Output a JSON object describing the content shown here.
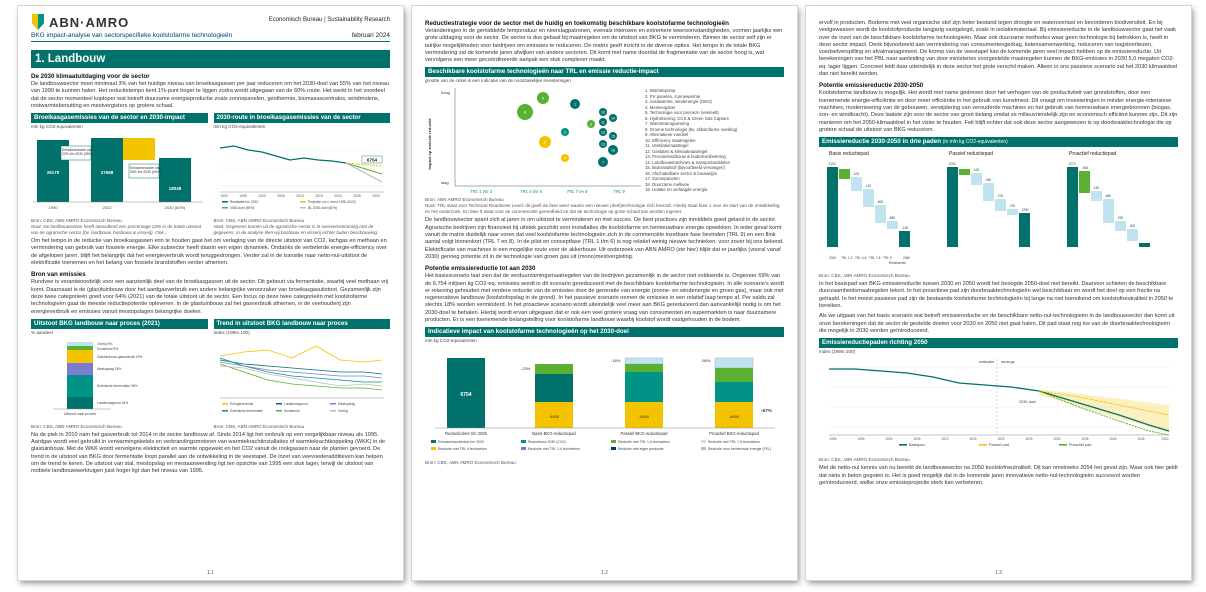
{
  "p1": {
    "brand": "ABN·AMRO",
    "header_right_1": "Economisch Bureau | Sustainability Research",
    "subtitle": "BKG impact-analyse van sectorspecifieke koolstofarme technologieën",
    "date": "februari 2024",
    "chapter": "1. Landbouw",
    "h1": "De 2030 klimaatuitdaging voor de sector",
    "para1": "De landbouwsector moet minimaal 3% van het huidige niveau van broeikasgassen per jaar reduceren om het 2030-doel van 55% van het niveau van 1990 te kunnen halen. Het reductietempo kent 1%-punt hoger te liggen zodra wordt uitgegaan van de 60%-route. Het werkt in het voordeel dat de sector momenteel koploper wat betreft duurzame energieproductie zoals zonnepanelen, geothermie, biomassacentrales, windmolens, restwarmtebenutting en mestvergisters op grotere schaal.",
    "chart1_title": "Broeikasgasemissies van de sector en 2030-impact",
    "chart1_unit": "mln kg CO2-equivalenten",
    "chart1_values": [
      "26170",
      "27688",
      "18048"
    ],
    "chart1_xlabels": [
      "1990",
      "2022",
      "2030 (60%)"
    ],
    "chart1_note1": "Emissiereductie van 22% t/m 2030 in het geval (de 55%-route)",
    "chart1_note2": "Emissiereductie van 30% t/m 2030 (in het geval van 60%-route)",
    "chart2_title": "2030-route in broeikasgasemissies van de sector",
    "chart2_unit": "mln kg CO2-equivalenten",
    "chart2_value": "6754",
    "chart2_years": [
      "1990",
      "1995",
      "2000",
      "2005",
      "2010",
      "2015",
      "2020",
      "2025",
      "2030"
    ],
    "chart2_legend": [
      "Realisatie t/m 2022",
      "2030-doel (55%)",
      "Projectie o.b.v. trend 1990-2022)",
      "BL 2030-doel (60%)"
    ],
    "source1": "Bron: CBS, ABN AMRO Economisch Bureau",
    "note1": "Noot: De landbouwsector heeft aanvullend een percentage 22% in de totale uitstoot van de agrarische sector (bv. landbouw, bosbouw & visserij). Ook...",
    "source1b": "Bron: CBS, ABN AMRO Economisch Bureau",
    "note1b": "Noot: Gegevens komen uit de agrarische sector is in overeenstemming met de gegevens. In de analyse liten wij bosbouw en visserij echter buiten beschouwing.",
    "para2": "Om het tempo in de reductie van broeikasgassen erin te houden gaat het om verlaging van de directe uitstoot van CO2, lachgas en methaan en vermindering van gebruik van fossiele energie. Elke subsector heeft daarin een eigen dynamiek. Ondanks de verbeterde energie-efficiency over de afgelopen jaren, blijft het belangrijk dat het energieverbruik wordt teruggedrongen. Verder zal in de transitie naar netto-nul-uitstoot de elektrificatie toenemen en het belang van fossiele brandstoffen verder afnemen.",
    "h2": "Bron van emissies",
    "para3": "Rundvee is verantwoordelijk voor een aanzienlijk deel van de broeikasgassen uit de sector. Dit gebeurt via fermentatie, waarbij veel methaan vrij komt. Daarnaast is de (glas)tuinbouw door het aardgasverbruik een andere belangrijke veroorzaker van broeikasgasuitstoot. Gezamenlijk zijn deze twee categorieën goed voor 64% (2021) van de totale uitstoot uit de sector. Een focus op deze twee categorieën met koolstofarme technologieën gaat de meeste reductiepotentie opleveren. In de glastuinbouw zal het gasverbruik afnemen, in de veehouderij zijn energieverbruik en emissies vanuit mestopslagen belangrijke doelen.",
    "chart3_title": "Uitstoot BKG landbouw naar proces (2021)",
    "chart3_unit": "% aandeel",
    "chart3_labels": [
      "Overig 5%",
      "Kunstmest 5%",
      "Glastuinbouw gasverbruik 19%",
      "Mestopslag 18%",
      "Enterische fermentatie 35%",
      "Landbouwgrond 18%"
    ],
    "chart3_xlabel": "Uitstoot naar proces",
    "chart4_title": "Trend in uitstoot BKG landbouw naar proces",
    "chart4_unit": "Index (1990=100)",
    "chart4_legend": [
      "Energieverbruik",
      "Landbouwgrond",
      "Mestopslag",
      "Enterische fermentatie",
      "Kunstmest",
      "Overig"
    ],
    "source2": "Bron: CBS, ABN AMRO Economisch Bureau",
    "source2b": "Bron: CBS, ABN AMRO Economisch Bureau",
    "para4": "Na de piek in 2010 nam het gasverbruik tot 2014 in de sector landbouw af. Sinds 2014 ligt het verbruik op een vergelijkbaar niveau als 1995. Aardgas wordt veel gebruikt in verwarmingsketels en verbrandingsmotoren van warmtekrachtinstallaties of warmtekrachtkoppeling (WKK) in de glastuinbouw. Met de WKK wordt vervolgens elektriciteit en warmte opgewekt en het CO2 vanuit de rookgassen naar de planten gevoerd. De trend in de uitstoot van BKG door fermentatie loopt parallel aan de ontwikkeling in de veestapel. De inzet van veevoederadditieven kan helpen om de trend te keren. De uitstoot van stal, mestopslag en mestaanwending ligt ten opzichte van 1995 een stuk lager, terwijl de uitstoot van mobiele landbouwwerktuigen juist hoger ligt dan het niveau van 1995.",
    "page": "1.1"
  },
  "p2": {
    "h1": "Reductiestrategie voor de sector met de huidig en toekomstig beschikbare koolstofarme technologieën",
    "para1": "Veranderingen in de gemiddelde temperatuur en neerslagpatronen, evenals intensere en extremere weersomstandigheden, vormen jaarlijks een grote uitdaging voor de sector. De sector is dus gebaat bij maatregelen om de uitstoot van BKG te verminderen. Binnen de sector zelf zijn er talrijke mogelijkheden voor bedrijven om emissies te reduceren. De matrix geeft inzicht in de diverse opties. Het tempo in de totale BKG vermindering zal de komende jaren afwijken van andere sectoren. Dit komt met name doordat de fragmentatie van de sector hoog is, wat vervolgens een meer gecoördineerde aanpak een stuk complexer maakt.",
    "matrix_title": "Beschikbare koolstofarme technologieën naar TRL en emissie reductie-impact",
    "matrix_unit": "grootte van de cirkel is een indicatie van de noodzakelijke investeringen",
    "matrix_ylabel": "Impact op emissie reductie",
    "matrix_yhigh": "hoog",
    "matrix_ylow": "laag",
    "matrix_xlabels": [
      "TRL 1 t/m 3",
      "TRL 4 t/m 6",
      "TRL 7 en 8",
      "TRL 9"
    ],
    "matrix_nums": [
      "1",
      "2",
      "3",
      "4",
      "5",
      "6",
      "7",
      "8",
      "9",
      "10",
      "11",
      "12",
      "13",
      "14",
      "15",
      "16",
      "17",
      "18",
      "19"
    ],
    "matrix_items": [
      "1. Warmtepomp",
      "2. PV-panelen, zonnewarmte",
      "3. Aardwarmte, windenergie (GEO)",
      "4. Mestvergister",
      "5. Technologie voor precieze (veeteelt)",
      "6. Hydrolisering, CCS & Green Gas Capture",
      "7. Warmteterugwinning",
      "8. Groene technologie (bv. stikstofarme voeding)",
      "9. Alternatieve voedsel",
      "10. Efficiency maatregelen",
      "11. Ventilatiemaatregel",
      "12. Geslaten & klimaatmaatregel",
      "13. Precisielandbouw & bodemverbetering",
      "14. Landbouwmachines & transportmiddelen",
      "15. Biobrandstof (bijvoorbeeld vervangen)",
      "16. Afschakelbare sector & bouwwijze",
      "17. Zonnepanelen",
      "18. Duurzame melkvee",
      "19. Isolatie en verlaagde energie"
    ],
    "source1": "Bron: ABN AMRO Economisch Bureau",
    "note1": "Noot: TRL staat voor Technical Readiness Level: dit geeft de fase weer waarin een nieuwe (deel)technologie zich bevindt. Hierbij staat fase 1 voor de start van de ontwikkeling en het onderzoek. En fase 9 staat voor de commerciële gereedheid en dat de technologie op grote schaal kan worden ingezet.",
    "para2": "De landbouwsector spant zich al jaren in om uitstoot te verminderen en met succes. De best practices zijn inmiddels goed geland in de sector. Agrarische bedrijven zijn financieel bij uitstek geschikt voor installaties die koolstofarme en hernieuwbare energie opwekken. In ieder geval komt vanuit de matrix duidelijk naar voren dat veel koolstofarme technologieën zich in de commerciële inzetbare fase bevinden (TRL 9) en een flink aantal volgt binnenkort (TRL 7 en 8). In de pilot en conceptfase (TRL 1 t/m 6) is nog relatief weinig nieuwe technieken, voor zover bij ons bekend. Elektrificatie van machines is een mogelijke route voor de akkerbouw. Uit onderzoek van ABN AMRO (zie hier) blijkt dat er jaarlijks (vooral vanaf 2030) genoeg potentie zit in de technologie van groen gas uit (mono)mestvergisting.",
    "h2": "Potentie emissiereductie tot aan 2030",
    "para3": "Het basisscenario laat zien dat de verduurzamingsmaatregelen van de bedrijven gezamenlijk in de sector niet voldoende is. Ongeveer 69% van de 6.754 miljoen kg CO2-eq. emissies wordt in dit scenario gereduceerd met de beschikbare koolstofarme technologieën. In alle scenario's wordt er rekening gehouden met verdere reductie van de emissies door de generatie van energie (zonne- en windenergie en groen gas), maar ook met regeneratieve landbouw (koolstofopslag in de grond). In het passieve scenario nemen de emissies in een relatief laag tempo af. Per saldo zal slechts 18% worden verminderd. In het proactieve scenario wordt uiteindelijk veel meer aan BKG gereduceerd dan aanvankelijk nodig is om het 2030-doel te behalen. Hierbij wordt ervan uitgegaan dat er ook een veel grotere vraag van consumenten en supermarkten is naar duurzamere producten. Er is een toenemende belangstelling voor koolstofarme landbouw waarbij koolstof wordt vastgehouden in de bodem.",
    "chart_title": "Indicatieve impact van koolstofarme technologieën op het 2030-doel",
    "chart_unit": "mln kg CO2-equivalenten",
    "chart_value_main": "6754",
    "chart_pcts": [
      "-23%",
      "-18%",
      "-58%",
      "-67%"
    ],
    "chart_inner": [
      "-4900",
      "-4900",
      "-4900"
    ],
    "chart_end": "-67%",
    "chart_xlabels": [
      "Reductiedoel t/m 2030",
      "Basis BKG-reductiepad",
      "Passief BKG-reductiepad",
      "Proactief BKG-reductiepad"
    ],
    "chart_legend": [
      "Emissiereductiedoel t/m 2030",
      "Restuitstoot 2030 (CO2)",
      "Reductie met TRL 1-6 technieken",
      "Reductie met TRL 7-8 technieken",
      "Reductie met TRL 9 technieken",
      "Reductie met TRL 1-6 technieken",
      "Reductie met eigen productie",
      "Reductie door hernieuwde energie (FEL)"
    ],
    "source2": "Bron: CBS, ABN AMRO Economisch Bureau",
    "page": "1.2"
  },
  "p3": {
    "para1": "ervolf in producten. Bodems met veel organische stof zijn beter bestand tegen droogte en wateroverlast en bevorderen biodiversiteit. En bij veelgewassen wordt de koolstofproductie langjarig vastgelegd, zoals in isolatiemateriaal. Bij emissiereductie in de landbouwsector gaat het vaak over de inzet van de beschikbare koolstofarme technologieën. Maar ook duurzame methodes waar geen technologie bij betrokken is, heeft in deze sector impact. Denk bijvoorbeeld aan vermindering van consumentengedrag, ketensamenwerking, reduceren van oogstverliezen, voedselverspilling en afvalmanagement. De kromp van de veestapel kan de komende jaren veel impact hebben op de emissiereductie. Uit berekeningen van het PBL naar aanleiding van door ministeries voorgestelde maatregelen kunnen de BKG-emissies in 2030 5,0 megaton CO2-eq. lager liggen. Concreet leidt daar uiteindelijk in deze sector het grote verschil maken. Alleen in ons passieve scenario zal het 2030 klimaatdoel dan niet bereikt worden.",
    "h1": "Potentie emissiereductie 2030-2050",
    "para2": "Koolstofarme landbouw is mogelijk. Het wordt met name gedreven door het verhogen van de productiviteit van grondstoffen, door een toenemende energie-efficiëntie en door meer efficiëntie in het gebruik van kunstmest. Dit vraagt om investeringen in minder energie-intensieve machines, modernisering van de gebouwen, verwijdering van verouderde machines en het gebruik van hernieuwbare energiebronnen (biogas, zon- en windkracht). Deze laatste zijn voor de sector van groot belang omdat ze milieuvriendelijk zijn en economisch efficiënt kunnen zijn. Dit zijn manieren om het 2050-klimaatdoel in het vizier te houden. Feit blijft echter dat ook deze sector aangewezen is op doorbraaktechnologie die op grotere schaal de uitstoot van BKG reduceren.",
    "chart1_title": "Emissiereductie 2030-2050 in drie paden",
    "chart1_unit": "(in mln kg CO2-equivalenten)",
    "chart1_panels": [
      "Basis reductiepad",
      "Passief reductiepad",
      "Proactief reductiepad"
    ],
    "chart1_panel_vals": [
      [
        "2100",
        "-100",
        "-120",
        "-600",
        "-880",
        "-190"
      ],
      [
        "2290",
        "-100",
        "-350",
        "-700",
        "-700",
        "1290"
      ],
      [
        "2270",
        "-560",
        "-150",
        "-680",
        "-290",
        "-300"
      ]
    ],
    "chart1_xlabels": [
      "2030",
      "TRL 1-3",
      "TRL 4-6",
      "TRL 7-8",
      "TRL 9",
      "Restwarmte",
      "2050"
    ],
    "source1": "Bron: CBS, ABN AMRO Economisch Bureau",
    "para3": "In het basispad van BKG emissiereductie tussen 2030 en 2050 wordt het beoogde 2050-doel niet bereikt. Daarvoor schieten de beschikbare duurzaamheidsmaatregelen tekort. In het proactieve pad zijn doorbraaktechnologieën wel beschikbaar en wordt het doel op een fractie na gehaald. In het meest passieve pad zijn de bestaande koolstofarme technologieën bij lange na niet toereikend om koolstofneutraliteit in 2050 te bereiken.",
    "para4": "Als we uitgaan van het basis scenario wat betreft emissiereductie en de beschikbare netto-nul-technologieën in de landbouwsector dan komt uit onze berekeningen dat de sector de gestelde doelen voor 2030 en 2050 niet gaat halen. Dit pad staat nog los van de doorbraaktechnologieën die mogelijk in 2030 worden geïntroduceerd.",
    "chart2_title": "Emissiereductiepaden richting 2050",
    "chart2_unit": "Index (1990=100)",
    "chart2_legend_top": [
      "realisatie",
      "ramings"
    ],
    "chart2_annot": "2030-doel",
    "chart2_years": [
      "1990",
      "1995",
      "2000",
      "2005",
      "2010",
      "2015",
      "2020",
      "2025",
      "2030",
      "2035",
      "2040",
      "2045",
      "2050"
    ],
    "chart2_legend": [
      "Basispad",
      "Passief pad",
      "Proactief pad"
    ],
    "source2": "Bron: CBS, ABN AMRO Economisch Bureau",
    "para5": "Met de netto-nul kennis van nu bereikt de landbouwsector na 2050 koolstofneutraliteit. Dit kan omstreeks 2054 het geval zijn. Maar ook hier geldt dat niets in beton gegoten is. Het is goed mogelijk dat in de komende jaren innovatieve netto-nul-technologieën succesvol worden geïntroduceerd, welke onze emissieprojectie sterk kan verbeteren.",
    "page": "1.3"
  },
  "colors": {
    "accent": "#00716b",
    "green": "#5ab031",
    "teal": "#009386",
    "yellow": "#f4c300",
    "lightblue": "#bfe4f0",
    "navy": "#003d6b"
  }
}
